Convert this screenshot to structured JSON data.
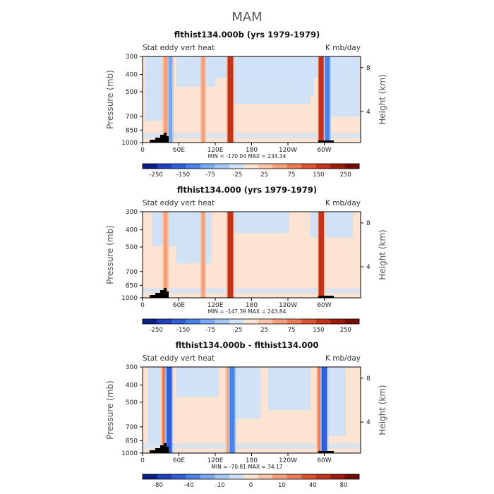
{
  "figure": {
    "title": "MAM"
  },
  "colorbar_colors": [
    "#0a1e84",
    "#1f3fbd",
    "#2f5fd7",
    "#4a83e8",
    "#7aa8f0",
    "#a6c6f5",
    "#cfe2f8",
    "#fde3d2",
    "#f8c3a6",
    "#f4a07a",
    "#ec7b55",
    "#dc5230",
    "#c5321a",
    "#9f1b0b",
    "#760d05"
  ],
  "chart_data": [
    {
      "type": "heatmap",
      "title": "flthist134.000b (yrs 1979-1979)",
      "left_label": "Stat eddy vert heat",
      "right_label": "K mb/day",
      "ylabel": "Pressure (mb)",
      "ylabel_right": "Height (km)",
      "y_ticks": [
        "300",
        "400",
        "500",
        "700",
        "850",
        "1000"
      ],
      "y_right_ticks": [
        "8",
        "4"
      ],
      "x_ticks": [
        "0",
        "60E",
        "120E",
        "180",
        "120W",
        "60W"
      ],
      "minmax_text": "MIN = -170.04   MAX = 234.34",
      "colorbar_labels": [
        "-250",
        "-150",
        "-75",
        "-25",
        "25",
        "75",
        "150",
        "250"
      ],
      "stripes": [
        {
          "lon": 38,
          "kind": "pos",
          "strength": 0.45
        },
        {
          "lon": 46,
          "kind": "neg",
          "strength": 0.4
        },
        {
          "lon": 100,
          "kind": "pos",
          "strength": 0.35
        },
        {
          "lon": 145,
          "kind": "pos",
          "strength": 1.0
        },
        {
          "lon": 295,
          "kind": "pos",
          "strength": 0.9
        },
        {
          "lon": 305,
          "kind": "neg",
          "strength": 0.7
        }
      ]
    },
    {
      "type": "heatmap",
      "title": "flthist134.000 (yrs 1979-1979)",
      "left_label": "Stat eddy vert heat",
      "right_label": "K mb/day",
      "ylabel": "Pressure (mb)",
      "ylabel_right": "Height (km)",
      "y_ticks": [
        "300",
        "400",
        "500",
        "700",
        "850",
        "1000"
      ],
      "y_right_ticks": [
        "8",
        "4"
      ],
      "x_ticks": [
        "0",
        "60E",
        "120E",
        "180",
        "120W",
        "60W"
      ],
      "minmax_text": "MIN = -147.39   MAX = 243.84",
      "colorbar_labels": [
        "-250",
        "-150",
        "-75",
        "-25",
        "25",
        "75",
        "150",
        "250"
      ],
      "stripes": [
        {
          "lon": 38,
          "kind": "pos",
          "strength": 0.45
        },
        {
          "lon": 100,
          "kind": "pos",
          "strength": 0.3
        },
        {
          "lon": 145,
          "kind": "pos",
          "strength": 1.0
        },
        {
          "lon": 295,
          "kind": "pos",
          "strength": 0.9
        }
      ]
    },
    {
      "type": "heatmap",
      "title": "flthist134.000b - flthist134.000",
      "left_label": "Stat eddy vert heat",
      "right_label": "K mb/day",
      "ylabel": "Pressure (mb)",
      "ylabel_right": "Height (km)",
      "y_ticks": [
        "300",
        "400",
        "500",
        "700",
        "850",
        "1000"
      ],
      "y_right_ticks": [
        "8",
        "4"
      ],
      "x_ticks": [
        "0",
        "60E",
        "120E",
        "180",
        "120W",
        "60W"
      ],
      "minmax_text": "MIN = -70.81   MAX =  34.17",
      "colorbar_labels": [
        "-80",
        "-40",
        "-10",
        "0",
        "10",
        "40",
        "80"
      ],
      "stripes": [
        {
          "lon": 36,
          "kind": "pos",
          "strength": 0.6
        },
        {
          "lon": 44,
          "kind": "neg",
          "strength": 0.9
        },
        {
          "lon": 142,
          "kind": "pos",
          "strength": 0.5
        },
        {
          "lon": 148,
          "kind": "neg",
          "strength": 0.8
        },
        {
          "lon": 293,
          "kind": "pos",
          "strength": 0.7
        },
        {
          "lon": 300,
          "kind": "neg",
          "strength": 0.9
        }
      ]
    }
  ]
}
